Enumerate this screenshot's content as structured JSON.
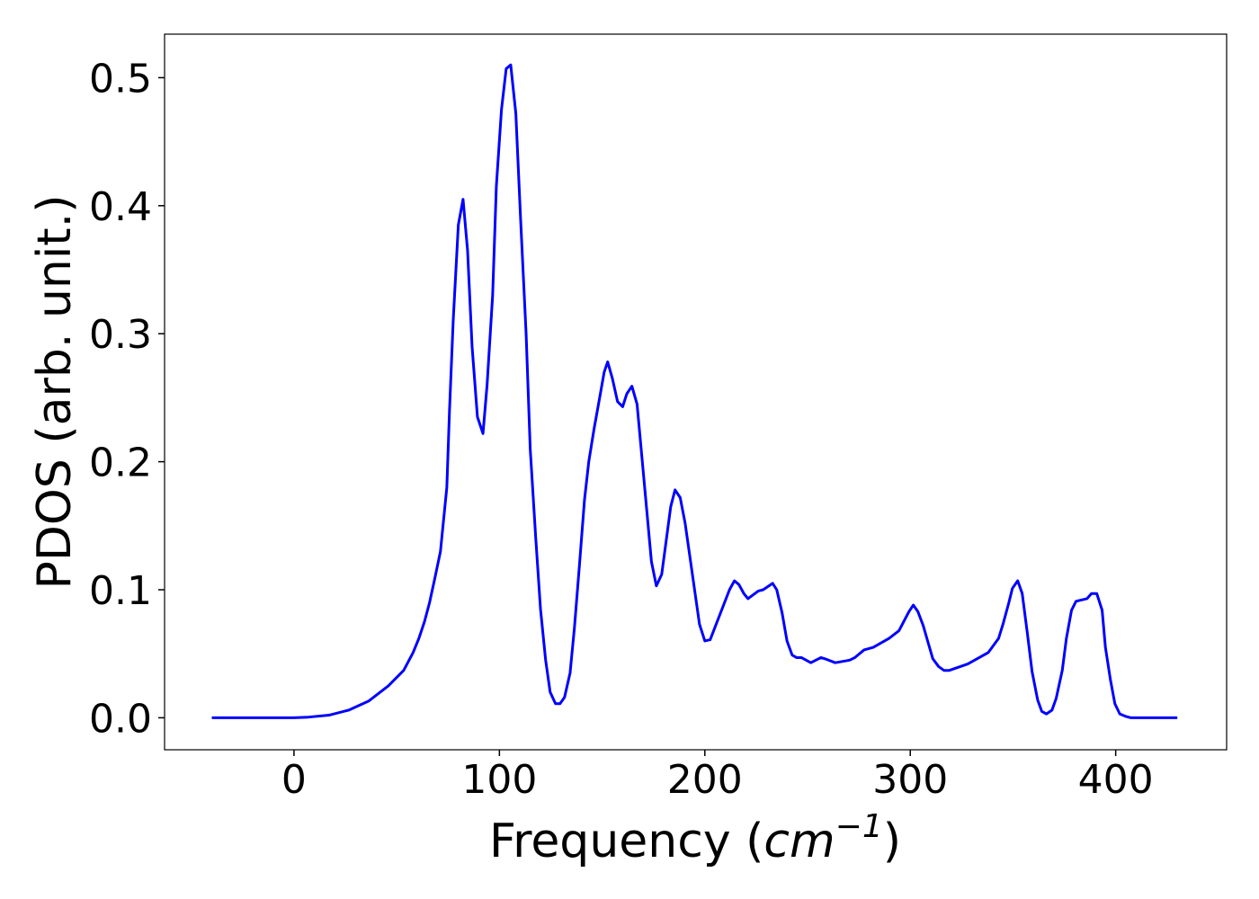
{
  "chart_data": {
    "type": "line",
    "xlabel": {
      "prefix": "Frequency (",
      "unit": "cm",
      "exponent": "−1",
      "suffix": ")"
    },
    "ylabel": "PDOS (arb. unit.)",
    "xlim": [
      -63,
      454
    ],
    "ylim": [
      -0.025,
      0.534
    ],
    "xticks": [
      0,
      100,
      200,
      300,
      400
    ],
    "yticks": [
      {
        "value": 0,
        "label": "0.0"
      },
      0.1,
      0.2,
      0.3,
      0.4,
      0.5
    ],
    "x": [
      -40,
      0,
      7,
      17,
      26.7,
      36.3,
      46,
      53.4,
      58,
      60.8,
      63.5,
      66,
      68.7,
      71.3,
      74.4,
      75.7,
      77.5,
      80,
      82.3,
      84.5,
      86.7,
      89.3,
      92,
      94,
      96.7,
      98.5,
      101,
      103.3,
      105.5,
      108,
      110.3,
      113,
      115,
      117.7,
      120,
      122.5,
      124.7,
      127.3,
      129.5,
      131.7,
      134.4,
      136.5,
      139,
      141.4,
      143.5,
      146,
      148.8,
      151,
      152.7,
      155,
      157.5,
      160,
      162,
      164.5,
      167,
      169,
      174,
      176.4,
      179,
      183.4,
      185.5,
      188,
      190.4,
      197.4,
      200,
      202.6,
      212,
      214.4,
      216.6,
      219,
      221,
      226,
      228.4,
      233,
      235,
      237.6,
      240,
      242.5,
      244.6,
      247,
      251.6,
      256.5,
      258.6,
      263.5,
      270.5,
      273,
      277.5,
      282,
      289.7,
      294.5,
      299.4,
      301.5,
      303.7,
      306.3,
      309,
      311,
      313.8,
      316.4,
      319,
      328,
      338,
      343,
      345.3,
      348,
      349.7,
      352.3,
      354.5,
      357,
      359.3,
      362,
      364,
      366.3,
      369,
      371,
      374,
      376,
      378.5,
      380.7,
      386,
      388.2,
      390.8,
      393.4,
      395,
      397.4,
      399.6,
      402,
      405,
      407.4,
      430
    ],
    "series": [
      {
        "name": "PDOS",
        "color": "#0000ff",
        "values": [
          0,
          0,
          0.0005,
          0.002,
          0.006,
          0.013,
          0.025,
          0.037,
          0.051,
          0.062,
          0.075,
          0.09,
          0.11,
          0.13,
          0.18,
          0.24,
          0.31,
          0.385,
          0.405,
          0.365,
          0.29,
          0.235,
          0.222,
          0.26,
          0.33,
          0.415,
          0.475,
          0.507,
          0.51,
          0.472,
          0.39,
          0.3,
          0.21,
          0.14,
          0.085,
          0.045,
          0.02,
          0.011,
          0.011,
          0.016,
          0.035,
          0.07,
          0.12,
          0.17,
          0.2,
          0.225,
          0.25,
          0.27,
          0.278,
          0.265,
          0.247,
          0.243,
          0.253,
          0.259,
          0.245,
          0.21,
          0.122,
          0.103,
          0.112,
          0.165,
          0.178,
          0.172,
          0.152,
          0.073,
          0.06,
          0.061,
          0.1,
          0.107,
          0.104,
          0.097,
          0.093,
          0.099,
          0.1,
          0.105,
          0.1,
          0.082,
          0.06,
          0.049,
          0.047,
          0.047,
          0.043,
          0.047,
          0.046,
          0.043,
          0.045,
          0.047,
          0.053,
          0.055,
          0.062,
          0.068,
          0.083,
          0.088,
          0.083,
          0.072,
          0.057,
          0.046,
          0.04,
          0.037,
          0.037,
          0.042,
          0.051,
          0.062,
          0.074,
          0.09,
          0.101,
          0.107,
          0.097,
          0.066,
          0.036,
          0.014,
          0.005,
          0.003,
          0.006,
          0.015,
          0.037,
          0.062,
          0.084,
          0.091,
          0.093,
          0.097,
          0.097,
          0.084,
          0.055,
          0.03,
          0.011,
          0.003,
          0.001,
          0,
          0
        ]
      }
    ]
  }
}
